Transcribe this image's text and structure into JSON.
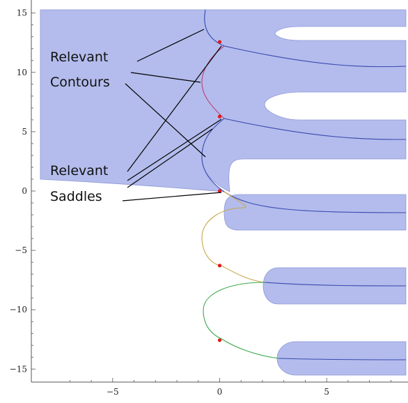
{
  "chart_data": {
    "type": "area",
    "title": "",
    "xlabel": "",
    "ylabel": "",
    "xlim": [
      -8.8,
      8.8
    ],
    "ylim": [
      -16.1,
      16.1
    ],
    "xticks": [
      -5,
      0,
      5
    ],
    "yticks": [
      15,
      10,
      5,
      0,
      -5,
      -10,
      -15
    ],
    "xtick_labels": [
      "−5",
      "0",
      "5"
    ],
    "ytick_labels": [
      "15",
      "10",
      "5",
      "0",
      "−5",
      "−10",
      "−15"
    ],
    "grid": false,
    "colors": {
      "fill": "#b3bcec",
      "fill_edge": "#8e98d8",
      "contour_blue": "#3a4ab0",
      "contour_magenta": "#c0407a",
      "contour_gold": "#c8a84a",
      "contour_green": "#3aa84a",
      "saddle": "#e01818",
      "annotation_line": "#000000"
    },
    "saddles": [
      {
        "x": 0,
        "y": 12.57
      },
      {
        "x": 0,
        "y": 6.28
      },
      {
        "x": 0,
        "y": 0
      },
      {
        "x": 0,
        "y": -6.28
      },
      {
        "x": 0,
        "y": -12.57
      }
    ],
    "annotations": [
      {
        "text": "Relevant"
      },
      {
        "text": "Contours"
      },
      {
        "text": "Relevant"
      },
      {
        "text": "Saddles"
      }
    ]
  }
}
